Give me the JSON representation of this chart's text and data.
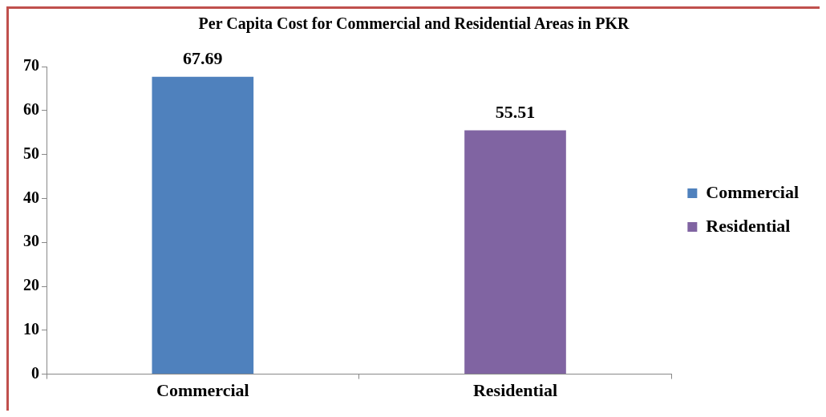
{
  "chart_data": {
    "type": "bar",
    "title": "Per Capita Cost for Commercial and Residential Areas in PKR",
    "categories": [
      "Commercial",
      "Residential"
    ],
    "series": [
      {
        "name": "Commercial",
        "color": "#4f81bd",
        "values": [
          67.69,
          null
        ]
      },
      {
        "name": "Residential",
        "color": "#8064a2",
        "values": [
          null,
          55.51
        ]
      }
    ],
    "ylim": [
      0,
      70
    ],
    "yticks": [
      0,
      10,
      20,
      30,
      40,
      50,
      60,
      70
    ],
    "grid": false,
    "legend": "right",
    "data_labels": true
  }
}
